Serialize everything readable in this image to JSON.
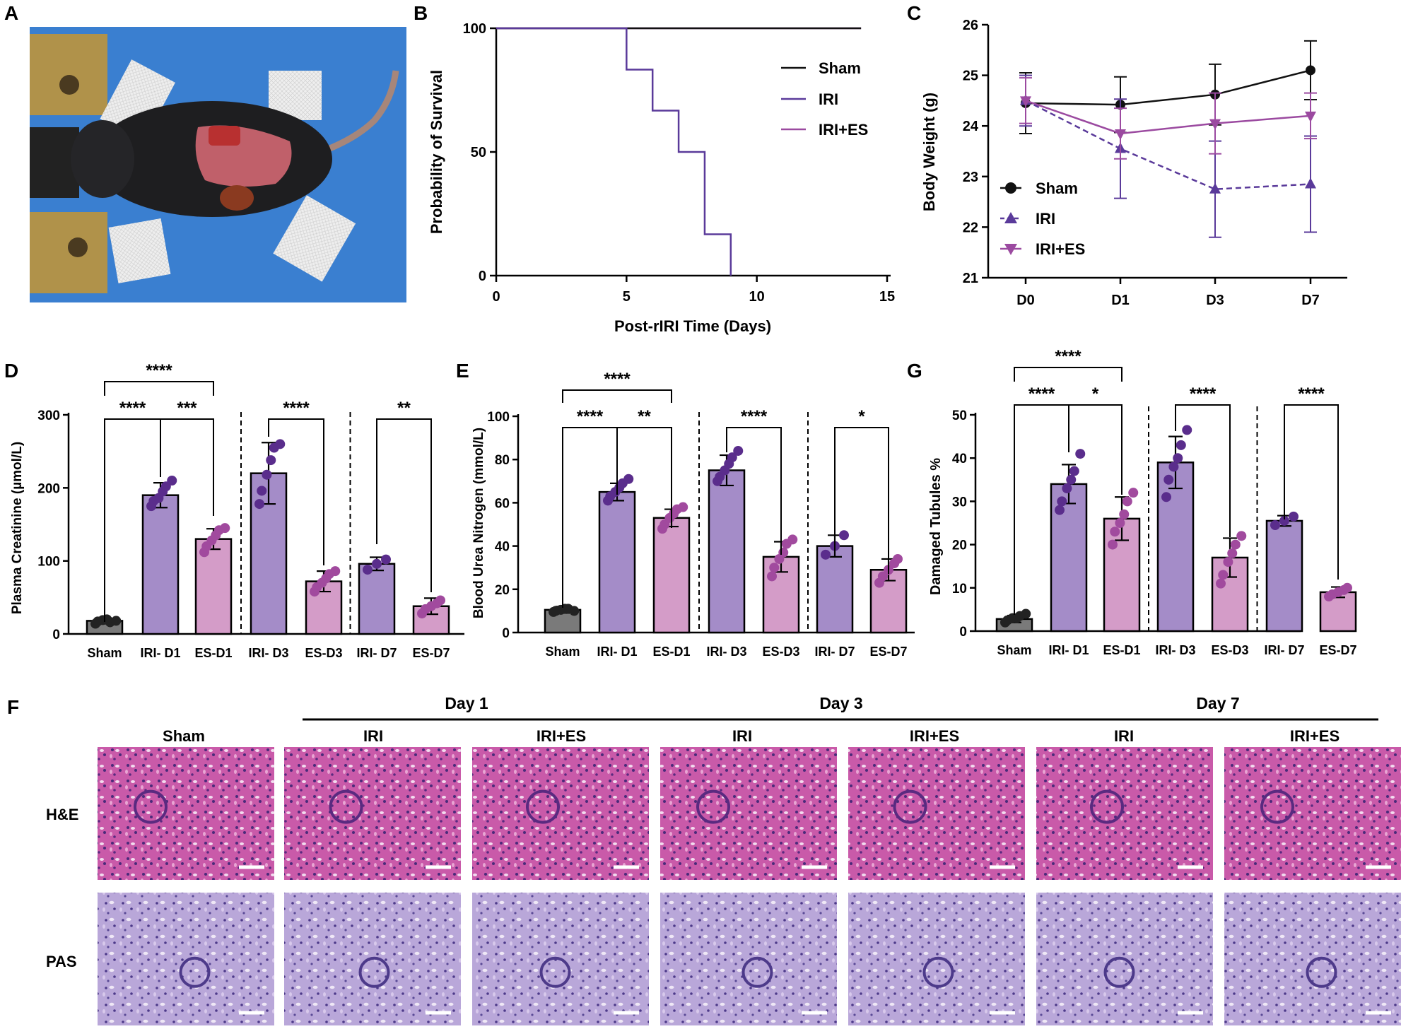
{
  "panel_letters": {
    "A": "A",
    "B": "B",
    "C": "C",
    "D": "D",
    "E": "E",
    "F": "F",
    "G": "G"
  },
  "colors": {
    "sham": "#111111",
    "iri_line": "#5a3a9a",
    "iri_es_line": "#9b4aa0",
    "bar_sham": "#7a7a7a",
    "bar_iri": "#a48cc8",
    "bar_es": "#d49cc8",
    "dot_sham": "#222222",
    "dot_iri": "#5a2d8c",
    "dot_es": "#a14a9e",
    "photo_bg": "#3a7fd0",
    "he_tissue": "#c85aa8",
    "pas_tissue": "#b8a4d8"
  },
  "chart_data": [
    {
      "panel": "B",
      "type": "line",
      "xlabel": "Post-rIRI Time (Days)",
      "ylabel": "Probability of Survival",
      "xlim": [
        0,
        15
      ],
      "ylim": [
        0,
        100
      ],
      "xticks": [
        "0",
        "5",
        "10",
        "15"
      ],
      "yticks": [
        "0",
        "50",
        "100"
      ],
      "legend_position": "top-right",
      "series": [
        {
          "name": "Sham",
          "x": [
            0,
            14
          ],
          "y": [
            100,
            100
          ]
        },
        {
          "name": "IRI",
          "x": [
            0,
            5,
            5,
            6,
            6,
            7,
            7,
            8,
            8,
            9,
            9
          ],
          "y": [
            100,
            100,
            83.3,
            83.3,
            66.7,
            66.7,
            50,
            50,
            16.7,
            16.7,
            0
          ]
        },
        {
          "name": "IRI+ES",
          "x": [
            0,
            14
          ],
          "y": [
            100,
            100
          ]
        }
      ]
    },
    {
      "panel": "C",
      "type": "line",
      "xlabel": "",
      "ylabel": "Body Weight (g)",
      "categories": [
        "D0",
        "D1",
        "D3",
        "D7"
      ],
      "ylim": [
        21,
        26
      ],
      "yticks": [
        "21",
        "22",
        "23",
        "24",
        "25",
        "26"
      ],
      "legend_position": "bottom-left",
      "series": [
        {
          "name": "Sham",
          "values": [
            24.45,
            24.42,
            24.62,
            25.1
          ],
          "err": [
            0.6,
            0.55,
            0.6,
            0.58
          ]
        },
        {
          "name": "IRI",
          "values": [
            24.5,
            23.55,
            22.75,
            22.85
          ],
          "err": [
            0.5,
            0.98,
            0.95,
            0.95
          ]
        },
        {
          "name": "IRI+ES",
          "values": [
            24.5,
            23.85,
            24.05,
            24.2
          ],
          "err": [
            0.45,
            0.5,
            0.6,
            0.45
          ]
        }
      ]
    },
    {
      "panel": "D",
      "type": "bar",
      "ylabel": "Plasma Creatinine (µmol/L)",
      "ylim": [
        0,
        300
      ],
      "yticks": [
        "0",
        "100",
        "200",
        "300"
      ],
      "categories": [
        "Sham",
        "IRI- D1",
        "ES-D1",
        "IRI- D3",
        "ES-D3",
        "IRI- D7",
        "ES-D7"
      ],
      "values": [
        18,
        190,
        130,
        220,
        72,
        96,
        38
      ],
      "err": [
        4,
        17,
        14,
        42,
        14,
        9,
        11
      ],
      "points": [
        [
          14,
          17,
          19,
          20,
          16,
          18
        ],
        [
          175,
          182,
          186,
          195,
          202,
          210
        ],
        [
          112,
          120,
          128,
          135,
          142,
          145
        ],
        [
          178,
          196,
          218,
          238,
          255,
          260
        ],
        [
          58,
          64,
          70,
          76,
          82,
          86
        ],
        [
          88,
          96,
          102
        ],
        [
          28,
          34,
          38,
          42,
          46
        ]
      ],
      "significance": [
        {
          "label": "****",
          "from": 0,
          "to": 2
        },
        {
          "label": "****",
          "from": 0,
          "to": 1
        },
        {
          "label": "***",
          "from": 1,
          "to": 2
        },
        {
          "label": "****",
          "from": 3,
          "to": 4
        },
        {
          "label": "**",
          "from": 5,
          "to": 6
        }
      ]
    },
    {
      "panel": "E",
      "type": "bar",
      "ylabel": "Blood Urea Nitrogen (mmol/L)",
      "ylim": [
        0,
        100
      ],
      "yticks": [
        "0",
        "20",
        "40",
        "60",
        "80",
        "100"
      ],
      "categories": [
        "Sham",
        "IRI- D1",
        "ES-D1",
        "IRI- D3",
        "ES-D3",
        "IRI- D7",
        "ES-D7"
      ],
      "values": [
        10.5,
        65,
        53,
        75,
        35,
        40,
        29
      ],
      "err": [
        1.5,
        4,
        4,
        7,
        7,
        5,
        5
      ],
      "points": [
        [
          9.5,
          10,
          10.5,
          11,
          11,
          10
        ],
        [
          61,
          63,
          65,
          67,
          69,
          71
        ],
        [
          48,
          50,
          53,
          55,
          57,
          58
        ],
        [
          70,
          72,
          75,
          78,
          81,
          84
        ],
        [
          26,
          30,
          34,
          37,
          41,
          43
        ],
        [
          36,
          40,
          45
        ],
        [
          23,
          26,
          29,
          32,
          34
        ]
      ],
      "significance": [
        {
          "label": "****",
          "from": 0,
          "to": 2
        },
        {
          "label": "****",
          "from": 0,
          "to": 1
        },
        {
          "label": "**",
          "from": 1,
          "to": 2
        },
        {
          "label": "****",
          "from": 3,
          "to": 4
        },
        {
          "label": "*",
          "from": 5,
          "to": 6
        }
      ]
    },
    {
      "panel": "G",
      "type": "bar",
      "ylabel": "Damaged Tubules %",
      "ylim": [
        0,
        50
      ],
      "yticks": [
        "0",
        "10",
        "20",
        "30",
        "40",
        "50"
      ],
      "categories": [
        "Sham",
        "IRI- D1",
        "ES-D1",
        "IRI- D3",
        "ES-D3",
        "IRI- D7",
        "ES-D7"
      ],
      "values": [
        2.8,
        34,
        26,
        39,
        17,
        25.5,
        9
      ],
      "err": [
        0.8,
        4.5,
        5,
        6,
        4.5,
        1.2,
        1.2
      ],
      "points": [
        [
          2,
          2.5,
          3,
          3,
          3.5,
          4
        ],
        [
          28,
          30,
          33,
          35,
          37,
          41
        ],
        [
          20,
          23,
          25,
          27,
          30,
          32
        ],
        [
          31,
          35,
          38,
          40,
          43,
          46.5
        ],
        [
          11,
          13,
          16,
          18,
          20,
          22
        ],
        [
          24.5,
          25.5,
          26.5
        ],
        [
          8,
          8.5,
          9,
          9.5,
          10
        ]
      ],
      "significance": [
        {
          "label": "****",
          "from": 0,
          "to": 2
        },
        {
          "label": "****",
          "from": 0,
          "to": 1
        },
        {
          "label": "*",
          "from": 1,
          "to": 2
        },
        {
          "label": "****",
          "from": 3,
          "to": 4
        },
        {
          "label": "****",
          "from": 5,
          "to": 6
        }
      ]
    }
  ],
  "legend": {
    "sham": "Sham",
    "iri": "IRI",
    "iri_es": "IRI+ES"
  },
  "panel_f": {
    "days": [
      "Day 1",
      "Day 3",
      "Day 7"
    ],
    "columns": [
      "Sham",
      "IRI",
      "IRI+ES",
      "IRI",
      "IRI+ES",
      "IRI",
      "IRI+ES"
    ],
    "rows": [
      "H&E",
      "PAS"
    ]
  }
}
